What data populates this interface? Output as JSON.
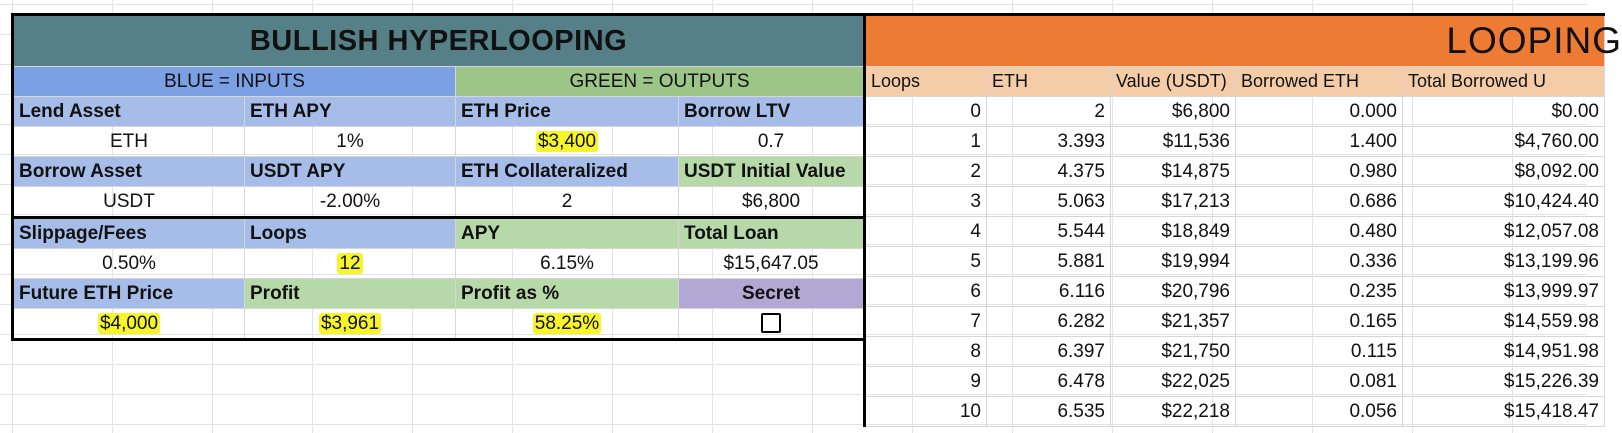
{
  "left": {
    "title": "BULLISH HYPERLOOPING",
    "legend_inputs": "BLUE = INPUTS",
    "legend_outputs": "GREEN = OUTPUTS",
    "row1_headers": [
      "Lend Asset",
      "ETH  APY",
      "ETH Price",
      "Borrow LTV"
    ],
    "row1_values": [
      "ETH",
      "1%",
      "$3,400",
      "0.7"
    ],
    "row2_headers": [
      "Borrow Asset",
      "USDT APY",
      "ETH Collateralized",
      "USDT Initial Value"
    ],
    "row2_values": [
      "USDT",
      "-2.00%",
      "2",
      "$6,800"
    ],
    "row3_headers": [
      "Slippage/Fees",
      "Loops",
      "APY",
      "Total Loan"
    ],
    "row3_values": [
      "0.50%",
      "12",
      "6.15%",
      "$15,647.05"
    ],
    "row4_headers": [
      "Future ETH Price",
      "Profit",
      "Profit as %",
      "Secret"
    ],
    "row4_values": [
      "$4,000",
      "$3,961",
      "58.25%"
    ],
    "secret_checked": false
  },
  "right": {
    "title": "LOOPING",
    "headers": [
      "Loops",
      "ETH",
      "Value (USDT)",
      "Borrowed ETH",
      "Total Borrowed U"
    ],
    "rows": [
      [
        "0",
        "2",
        "$6,800",
        "0.000",
        "$0.00"
      ],
      [
        "1",
        "3.393",
        "$11,536",
        "1.400",
        "$4,760.00"
      ],
      [
        "2",
        "4.375",
        "$14,875",
        "0.980",
        "$8,092.00"
      ],
      [
        "3",
        "5.063",
        "$17,213",
        "0.686",
        "$10,424.40"
      ],
      [
        "4",
        "5.544",
        "$18,849",
        "0.480",
        "$12,057.08"
      ],
      [
        "5",
        "5.881",
        "$19,994",
        "0.336",
        "$13,199.96"
      ],
      [
        "6",
        "6.116",
        "$20,796",
        "0.235",
        "$13,999.97"
      ],
      [
        "7",
        "6.282",
        "$21,357",
        "0.165",
        "$14,559.98"
      ],
      [
        "8",
        "6.397",
        "$21,750",
        "0.115",
        "$14,951.98"
      ],
      [
        "9",
        "6.478",
        "$22,025",
        "0.081",
        "$15,226.39"
      ],
      [
        "10",
        "6.535",
        "$22,218",
        "0.056",
        "$15,418.47"
      ]
    ]
  },
  "colors": {
    "title_left_bg": "#558088",
    "title_right_bg": "#ed7b34",
    "input_blue": "#a7bde9",
    "output_green": "#b7d8a8",
    "highlight_yellow": "#f7f42a",
    "secret_purple": "#b3a7d4",
    "header_peach": "#f4cca7"
  }
}
